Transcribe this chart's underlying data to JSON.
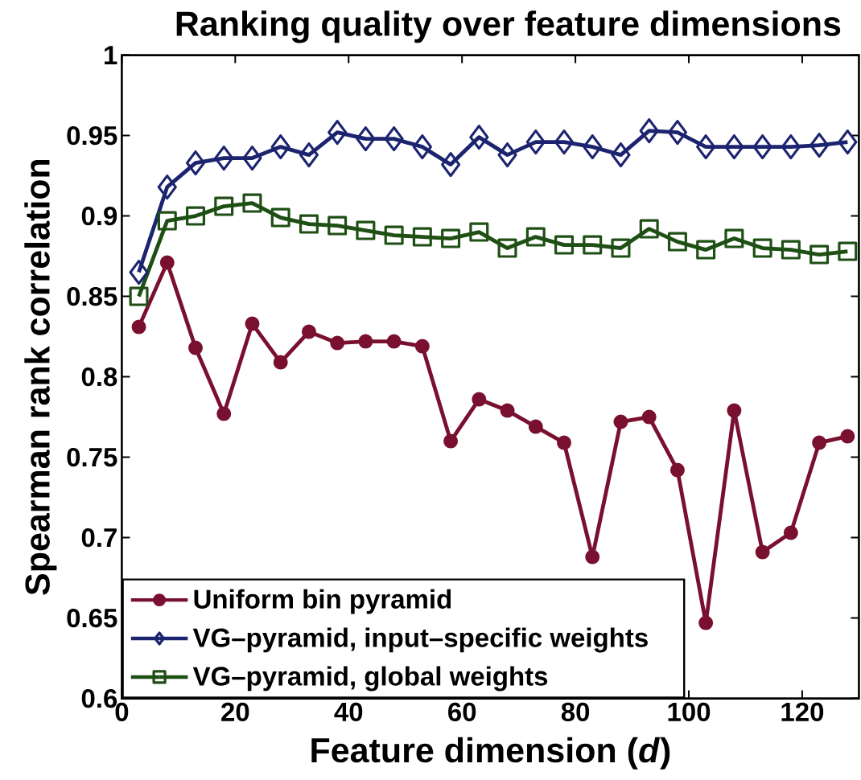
{
  "chart_data": {
    "type": "line",
    "title": "Ranking quality over feature dimensions",
    "xlabel": "Feature dimension (*d*)",
    "ylabel": "Spearman rank correlation",
    "x": [
      3,
      8,
      13,
      18,
      23,
      28,
      33,
      38,
      43,
      48,
      53,
      58,
      63,
      68,
      73,
      78,
      83,
      88,
      93,
      98,
      103,
      108,
      113,
      118,
      123,
      128
    ],
    "xlim": [
      0,
      130
    ],
    "ylim": [
      0.6,
      1
    ],
    "xticks": [
      0,
      20,
      40,
      60,
      80,
      100,
      120
    ],
    "yticks": [
      0.6,
      0.65,
      0.7,
      0.75,
      0.8,
      0.85,
      0.9,
      0.95,
      1
    ],
    "legend": "bottom left",
    "series": [
      {
        "name": "Uniform bin pyramid",
        "color": "#7a1030",
        "marker": "circle",
        "values": [
          0.831,
          0.871,
          0.818,
          0.777,
          0.833,
          0.809,
          0.828,
          0.821,
          0.822,
          0.822,
          0.819,
          0.76,
          0.786,
          0.779,
          0.769,
          0.759,
          0.688,
          0.772,
          0.775,
          0.742,
          0.647,
          0.779,
          0.691,
          0.703,
          0.759,
          0.763
        ]
      },
      {
        "name": "VG–pyramid, input–specific weights",
        "color": "#1c2470",
        "marker": "diamond",
        "values": [
          0.865,
          0.918,
          0.933,
          0.936,
          0.936,
          0.943,
          0.938,
          0.952,
          0.948,
          0.948,
          0.943,
          0.932,
          0.949,
          0.938,
          0.946,
          0.946,
          0.943,
          0.938,
          0.953,
          0.952,
          0.943,
          0.943,
          0.943,
          0.943,
          0.944,
          0.946
        ]
      },
      {
        "name": "VG–pyramid, global weights",
        "color": "#1e4f14",
        "marker": "square",
        "values": [
          0.85,
          0.897,
          0.9,
          0.906,
          0.908,
          0.899,
          0.895,
          0.894,
          0.891,
          0.888,
          0.887,
          0.886,
          0.89,
          0.88,
          0.887,
          0.882,
          0.882,
          0.88,
          0.892,
          0.884,
          0.879,
          0.886,
          0.88,
          0.879,
          0.876,
          0.878
        ]
      }
    ]
  }
}
